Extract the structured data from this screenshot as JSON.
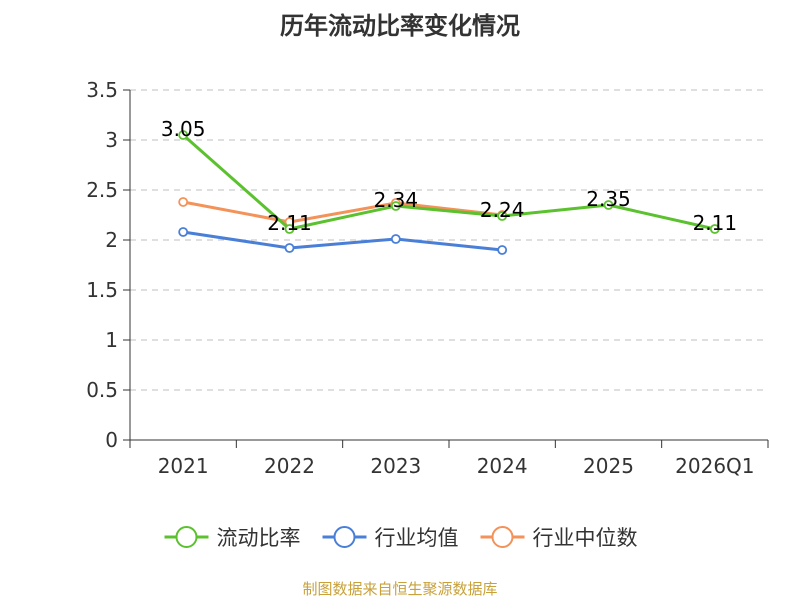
{
  "chart_data": {
    "type": "line",
    "title": "历年流动比率变化情况",
    "categories": [
      "2021",
      "2022",
      "2023",
      "2024",
      "2025",
      "2026Q1"
    ],
    "ylim": [
      0,
      3.5
    ],
    "yticks": [
      "0",
      "0.5",
      "1",
      "1.5",
      "2",
      "2.5",
      "3",
      "3.5"
    ],
    "grid": true,
    "legend_position": "bottom",
    "series": [
      {
        "name": "流动比率",
        "color": "#5cc12e",
        "values": [
          3.05,
          2.11,
          2.34,
          2.24,
          2.35,
          2.11
        ],
        "labels": [
          "3.05",
          "2.11",
          "2.34",
          "2.24",
          "2.35",
          "2.11"
        ]
      },
      {
        "name": "行业均值",
        "color": "#4a7fd8",
        "values": [
          2.08,
          1.92,
          2.01,
          1.9,
          null,
          null
        ]
      },
      {
        "name": "行业中位数",
        "color": "#f39259",
        "values": [
          2.38,
          2.18,
          2.37,
          2.25,
          null,
          null
        ]
      }
    ],
    "source": "制图数据来自恒生聚源数据库"
  }
}
